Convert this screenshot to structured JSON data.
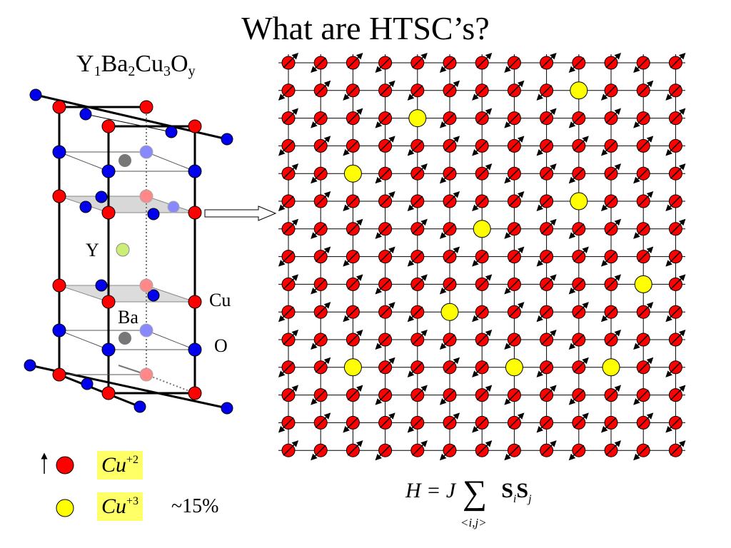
{
  "title": "What are HTSC’s?",
  "formula": {
    "parts": [
      "Y",
      "1",
      "Ba",
      "2",
      "Cu",
      "3",
      "O",
      "y"
    ]
  },
  "crystal": {
    "labels": {
      "y": "Y",
      "cu": "Cu",
      "ba": "Ba",
      "o": "O"
    }
  },
  "legend": {
    "cu2": {
      "base": "Cu",
      "charge": "+2",
      "color": "#ff0000"
    },
    "cu3": {
      "base": "Cu",
      "charge": "+3",
      "color": "#ffff00"
    },
    "fraction": "~15%"
  },
  "colors": {
    "copper_red": "#ff0000",
    "oxygen_blue": "#0000ee",
    "hole_yellow": "#ffff00",
    "highlight": "#ffff66",
    "yttrium": "#ccee77",
    "barium": "#777777"
  },
  "lattice": {
    "rows": 15,
    "cols": 13,
    "hole_sites": [
      [
        1,
        9
      ],
      [
        2,
        4
      ],
      [
        4,
        2
      ],
      [
        5,
        9
      ],
      [
        6,
        6
      ],
      [
        8,
        11
      ],
      [
        9,
        5
      ],
      [
        11,
        2
      ],
      [
        11,
        7
      ],
      [
        11,
        10
      ]
    ]
  },
  "hamiltonian": {
    "lhs": "H = J",
    "sum": "∑",
    "sum_sub": "<i,j>",
    "S1": "S",
    "i": "i",
    "S2": "S",
    "j": "j"
  }
}
